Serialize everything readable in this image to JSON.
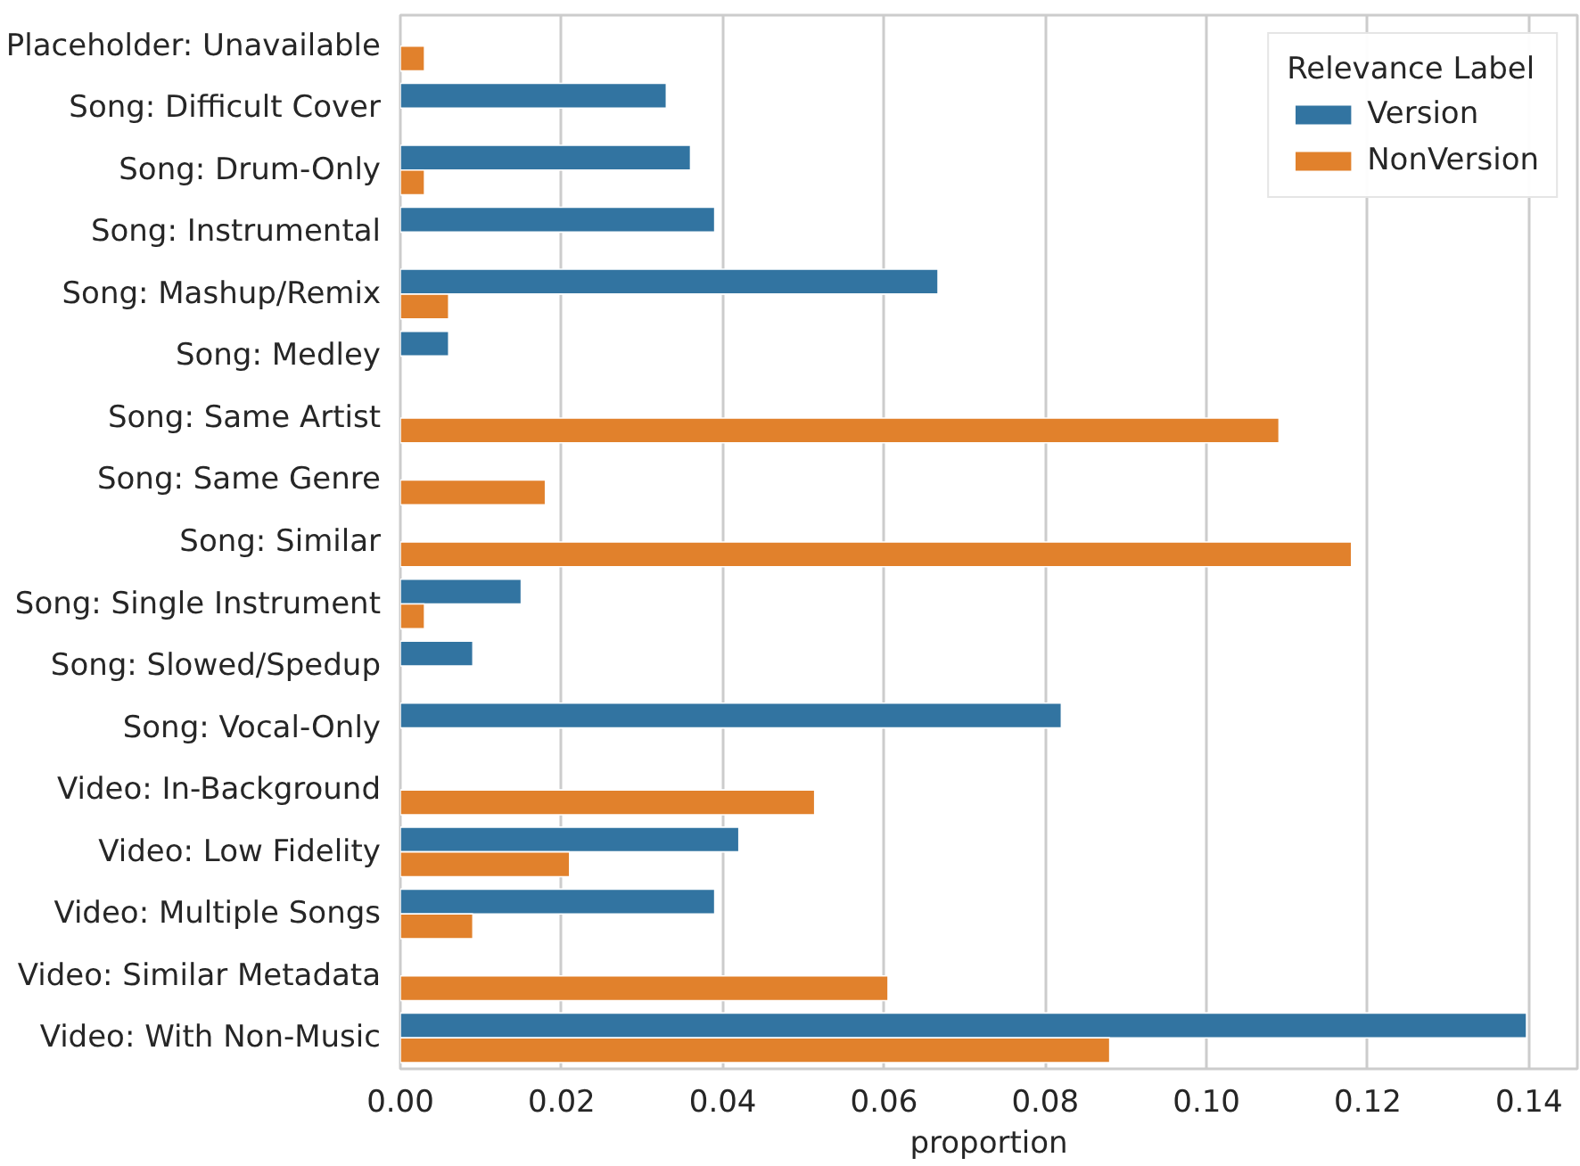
{
  "chart_data": {
    "type": "bar",
    "orientation": "horizontal",
    "xlabel": "proportion",
    "legend_title": "Relevance Label",
    "categories": [
      "Placeholder: Unavailable",
      "Song: Difficult Cover",
      "Song: Drum-Only",
      "Song: Instrumental",
      "Song: Mashup/Remix",
      "Song: Medley",
      "Song: Same Artist",
      "Song: Same Genre",
      "Song: Similar",
      "Song: Single Instrument",
      "Song: Slowed/Spedup",
      "Song: Vocal-Only",
      "Video: In-Background",
      "Video: Low Fidelity",
      "Video: Multiple Songs",
      "Video: Similar Metadata",
      "Video: With Non-Music"
    ],
    "series": [
      {
        "name": "Version",
        "color": "#3274a1",
        "values": [
          null,
          0.033,
          0.036,
          0.039,
          0.0667,
          0.006,
          null,
          null,
          null,
          0.015,
          0.009,
          0.082,
          null,
          0.042,
          0.039,
          null,
          0.1397
        ]
      },
      {
        "name": "NonVersion",
        "color": "#e1812c",
        "values": [
          0.003,
          null,
          0.003,
          null,
          0.006,
          null,
          0.109,
          0.018,
          0.118,
          0.003,
          null,
          null,
          0.0514,
          0.021,
          0.009,
          0.0605,
          0.088
        ]
      }
    ],
    "xlim": [
      0,
      0.146
    ],
    "xticks": [
      {
        "value": 0,
        "label": "0.00"
      },
      {
        "value": 0.02,
        "label": "0.02"
      },
      {
        "value": 0.04,
        "label": "0.04"
      },
      {
        "value": 0.06,
        "label": "0.06"
      },
      {
        "value": 0.08,
        "label": "0.08"
      },
      {
        "value": 0.1,
        "label": "0.10"
      },
      {
        "value": 0.12,
        "label": "0.12"
      },
      {
        "value": 0.14,
        "label": "0.14"
      }
    ],
    "grid": "x",
    "legend": "top right"
  }
}
